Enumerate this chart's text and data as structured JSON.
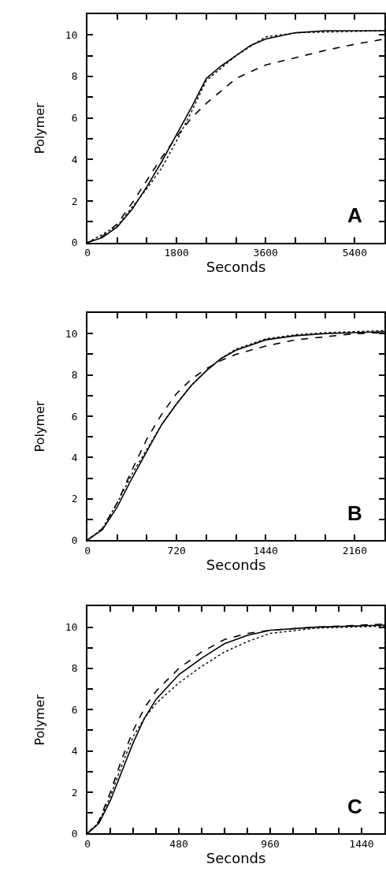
{
  "chart_data": [
    {
      "type": "line",
      "xlabel": "Seconds",
      "ylabel": "Polymer",
      "annotations": [
        "A"
      ],
      "marker": "none",
      "xlim": [
        0,
        6000
      ],
      "xticks": [
        0,
        {
          "value": 600,
          "label": null
        },
        {
          "value": 1200,
          "label": null
        },
        1800,
        {
          "value": 2400,
          "label": null
        },
        {
          "value": 3000,
          "label": null
        },
        3600,
        {
          "value": 4200,
          "label": null
        },
        {
          "value": 4800,
          "label": null
        },
        5400,
        {
          "value": 6000,
          "label": null
        }
      ],
      "ylim": [
        0,
        11
      ],
      "yticks": [
        0,
        {
          "value": 1,
          "label": null
        },
        2,
        {
          "value": 3,
          "label": null
        },
        4,
        {
          "value": 5,
          "label": null
        },
        6,
        {
          "value": 7,
          "label": null
        },
        8,
        {
          "value": 9,
          "label": null
        },
        10
      ],
      "series": [
        {
          "color": "#000000",
          "line_style": "solid",
          "x": [
            0,
            300,
            600,
            900,
            1200,
            1500,
            1800,
            2100,
            2400,
            2700,
            3000,
            3300,
            3600,
            4200,
            4800,
            6000
          ],
          "values": [
            0,
            0.25,
            0.75,
            1.6,
            2.7,
            3.9,
            5.2,
            6.5,
            7.9,
            8.5,
            9.0,
            9.5,
            9.8,
            10.1,
            10.2,
            10.2
          ]
        },
        {
          "color": "#000000",
          "line_style": "dotted",
          "x": [
            0,
            600,
            1200,
            1500,
            1800,
            2100,
            2400,
            3000,
            3600,
            4200,
            6000
          ],
          "values": [
            0,
            0.8,
            2.6,
            3.6,
            4.9,
            6.3,
            7.8,
            9.0,
            9.9,
            10.1,
            10.2
          ]
        },
        {
          "color": "#000000",
          "line_style": "dashed",
          "x": [
            0,
            300,
            600,
            900,
            1200,
            1500,
            1800,
            2100,
            2400,
            3000,
            3600,
            4200,
            4800,
            5400,
            6000
          ],
          "values": [
            0,
            0.3,
            0.9,
            1.9,
            3.0,
            4.1,
            5.1,
            6.0,
            6.7,
            7.9,
            8.55,
            8.9,
            9.25,
            9.55,
            9.8
          ]
        }
      ]
    },
    {
      "type": "line",
      "xlabel": "Seconds",
      "ylabel": "Polymer",
      "annotations": [
        "B"
      ],
      "marker": "none",
      "xlim": [
        0,
        2400
      ],
      "xticks": [
        0,
        {
          "value": 240,
          "label": null
        },
        {
          "value": 480,
          "label": null
        },
        720,
        {
          "value": 960,
          "label": null
        },
        {
          "value": 1200,
          "label": null
        },
        1440,
        {
          "value": 1680,
          "label": null
        },
        {
          "value": 1920,
          "label": null
        },
        2160,
        {
          "value": 2400,
          "label": null
        }
      ],
      "ylim": [
        0,
        11
      ],
      "yticks": [
        0,
        {
          "value": 1,
          "label": null
        },
        2,
        {
          "value": 3,
          "label": null
        },
        4,
        {
          "value": 5,
          "label": null
        },
        6,
        {
          "value": 7,
          "label": null
        },
        8,
        {
          "value": 9,
          "label": null
        },
        10
      ],
      "series": [
        {
          "color": "#000000",
          "line_style": "solid",
          "x": [
            0,
            120,
            240,
            360,
            480,
            600,
            720,
            840,
            960,
            1080,
            1200,
            1440,
            1680,
            1920,
            2400
          ],
          "values": [
            0,
            0.5,
            1.6,
            3.0,
            4.3,
            5.6,
            6.6,
            7.5,
            8.2,
            8.8,
            9.2,
            9.7,
            9.9,
            10.0,
            10.1
          ]
        },
        {
          "color": "#000000",
          "line_style": "dotted",
          "x": [
            0,
            120,
            240,
            360,
            480,
            600,
            720,
            840,
            960,
            1080,
            1200,
            1440,
            1680,
            1920,
            2400
          ],
          "values": [
            0,
            0.55,
            1.8,
            3.2,
            4.4,
            5.6,
            6.6,
            7.5,
            8.2,
            8.8,
            9.25,
            9.75,
            9.95,
            10.05,
            10.15
          ]
        },
        {
          "color": "#000000",
          "line_style": "dashed",
          "x": [
            0,
            120,
            240,
            360,
            480,
            600,
            720,
            840,
            960,
            1080,
            1200,
            1440,
            1680,
            1920,
            2160,
            2400
          ],
          "values": [
            0,
            0.55,
            1.8,
            3.4,
            4.9,
            6.1,
            7.1,
            7.8,
            8.3,
            8.7,
            9.0,
            9.4,
            9.7,
            9.85,
            10.0,
            10.05
          ]
        }
      ]
    },
    {
      "type": "line",
      "xlabel": "Seconds",
      "ylabel": "Polymer",
      "annotations": [
        "C"
      ],
      "marker": "none",
      "xlim": [
        0,
        1560
      ],
      "xticks": [
        0,
        {
          "value": 120,
          "label": null
        },
        {
          "value": 240,
          "label": null
        },
        {
          "value": 360,
          "label": null
        },
        480,
        {
          "value": 600,
          "label": null
        },
        {
          "value": 720,
          "label": null
        },
        {
          "value": 840,
          "label": null
        },
        960,
        {
          "value": 1080,
          "label": null
        },
        {
          "value": 1200,
          "label": null
        },
        {
          "value": 1320,
          "label": null
        },
        1440,
        {
          "value": 1560,
          "label": null
        }
      ],
      "ylim": [
        0,
        11
      ],
      "yticks": [
        0,
        {
          "value": 1,
          "label": null
        },
        2,
        {
          "value": 3,
          "label": null
        },
        4,
        {
          "value": 5,
          "label": null
        },
        6,
        {
          "value": 7,
          "label": null
        },
        8,
        {
          "value": 9,
          "label": null
        },
        10
      ],
      "series": [
        {
          "color": "#000000",
          "line_style": "solid",
          "x": [
            0,
            60,
            120,
            180,
            240,
            300,
            360,
            480,
            600,
            720,
            840,
            960,
            1200,
            1560
          ],
          "values": [
            0,
            0.5,
            1.6,
            3.0,
            4.4,
            5.6,
            6.5,
            7.7,
            8.5,
            9.2,
            9.6,
            9.85,
            10.0,
            10.1
          ]
        },
        {
          "color": "#000000",
          "line_style": "dotted",
          "x": [
            0,
            60,
            120,
            180,
            240,
            300,
            360,
            480,
            600,
            720,
            840,
            960,
            1200,
            1560
          ],
          "values": [
            0,
            0.55,
            1.8,
            3.3,
            4.7,
            5.6,
            6.3,
            7.3,
            8.1,
            8.8,
            9.3,
            9.7,
            9.95,
            10.05
          ]
        },
        {
          "color": "#000000",
          "line_style": "dashed",
          "x": [
            0,
            60,
            120,
            180,
            240,
            300,
            360,
            480,
            600,
            720,
            840,
            960,
            1200,
            1560
          ],
          "values": [
            0,
            0.6,
            2.0,
            3.6,
            5.0,
            6.1,
            6.9,
            8.0,
            8.8,
            9.4,
            9.7,
            9.85,
            10.0,
            10.15
          ]
        }
      ]
    }
  ]
}
